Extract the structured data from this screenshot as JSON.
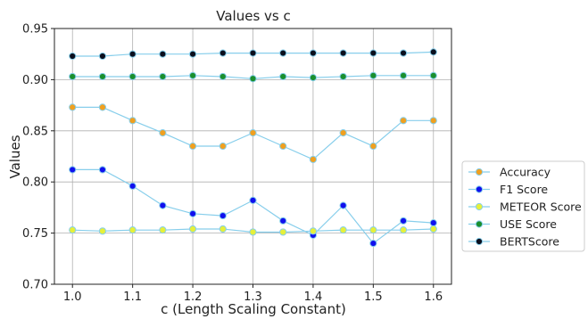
{
  "chart_data": {
    "type": "line",
    "title": "Values vs c",
    "xlabel": "c (Length Scaling Constant)",
    "ylabel": "Values",
    "xlim": [
      0.97,
      1.63
    ],
    "ylim": [
      0.7,
      0.95
    ],
    "xticks": [
      "1.0",
      "1.1",
      "1.2",
      "1.3",
      "1.4",
      "1.5",
      "1.6"
    ],
    "xtick_values": [
      1.0,
      1.1,
      1.2,
      1.3,
      1.4,
      1.5,
      1.6
    ],
    "yticks": [
      "0.70",
      "0.75",
      "0.80",
      "0.85",
      "0.90",
      "0.95"
    ],
    "ytick_values": [
      0.7,
      0.75,
      0.8,
      0.85,
      0.9,
      0.95
    ],
    "grid": true,
    "legend_position": "right",
    "line_color": "#87CEEB",
    "x": [
      1.0,
      1.05,
      1.1,
      1.15,
      1.2,
      1.25,
      1.3,
      1.35,
      1.4,
      1.45,
      1.5,
      1.55,
      1.6
    ],
    "series": [
      {
        "name": "Accuracy",
        "color": "#f0a020",
        "values": [
          0.873,
          0.873,
          0.86,
          0.848,
          0.835,
          0.835,
          0.848,
          0.835,
          0.822,
          0.848,
          0.835,
          0.86,
          0.86
        ]
      },
      {
        "name": "F1 Score",
        "color": "#1010ee",
        "values": [
          0.812,
          0.812,
          0.796,
          0.777,
          0.769,
          0.767,
          0.782,
          0.762,
          0.748,
          0.777,
          0.74,
          0.762,
          0.76
        ]
      },
      {
        "name": "METEOR Score",
        "color": "#e6f03a",
        "values": [
          0.753,
          0.752,
          0.753,
          0.753,
          0.754,
          0.754,
          0.751,
          0.751,
          0.752,
          0.753,
          0.753,
          0.753,
          0.754
        ]
      },
      {
        "name": "USE Score",
        "color": "#1a8f2e",
        "values": [
          0.903,
          0.903,
          0.903,
          0.903,
          0.904,
          0.903,
          0.901,
          0.903,
          0.902,
          0.903,
          0.904,
          0.904,
          0.904
        ]
      },
      {
        "name": "BERTScore",
        "color": "#0a0f1e",
        "values": [
          0.923,
          0.923,
          0.925,
          0.925,
          0.925,
          0.926,
          0.926,
          0.926,
          0.926,
          0.926,
          0.926,
          0.926,
          0.927
        ]
      }
    ]
  }
}
